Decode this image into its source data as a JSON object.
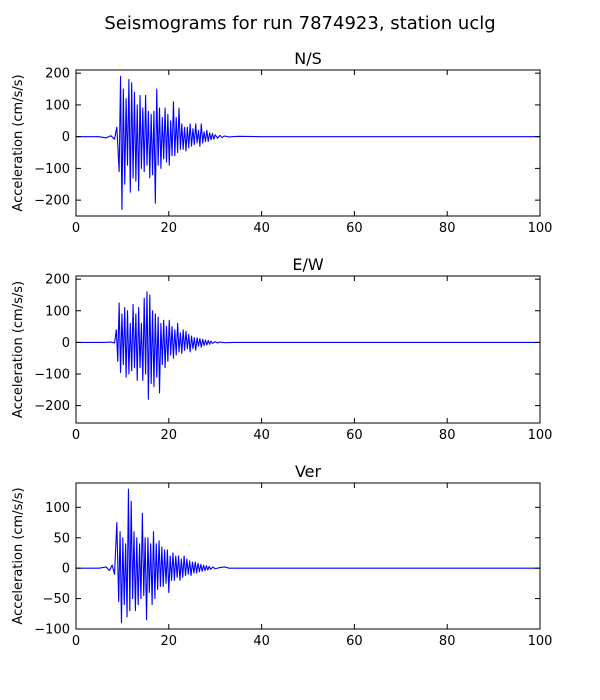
{
  "figure": {
    "title": "Seismograms for run 7874923, station uclg",
    "line_color": "#0000ff"
  },
  "chart_data": [
    {
      "type": "line",
      "title": "N/S",
      "xlabel": "",
      "ylabel": "Acceleration (cm/s/s)",
      "xlim": [
        0,
        100
      ],
      "ylim": [
        -250,
        210
      ],
      "xticks": [
        0,
        20,
        40,
        60,
        80,
        100
      ],
      "yticks": [
        -200,
        -100,
        0,
        100,
        200
      ],
      "grid": false,
      "series": [
        {
          "description": "seismogram trace (approximate envelope samples)",
          "x": [
            0,
            5,
            6.5,
            7.5,
            8.3,
            8.8,
            9.3,
            9.6,
            9.9,
            10.2,
            10.5,
            10.8,
            11.1,
            11.4,
            11.7,
            12.0,
            12.3,
            12.6,
            12.9,
            13.2,
            13.5,
            13.8,
            14.1,
            14.4,
            14.7,
            15.0,
            15.3,
            15.6,
            15.9,
            16.2,
            16.5,
            16.8,
            17.1,
            17.4,
            17.7,
            18.0,
            18.3,
            18.6,
            18.9,
            19.2,
            19.5,
            19.8,
            20.1,
            20.4,
            20.7,
            21.0,
            21.3,
            21.6,
            21.9,
            22.2,
            22.5,
            22.8,
            23.1,
            23.4,
            23.7,
            24.0,
            24.3,
            24.6,
            24.9,
            25.2,
            25.5,
            25.8,
            26.1,
            26.4,
            26.7,
            27.0,
            27.3,
            27.6,
            27.9,
            28.2,
            28.5,
            28.8,
            29.1,
            29.4,
            29.7,
            30.0,
            30.5,
            31.0,
            31.5,
            32.0,
            33.0,
            35.0,
            40.0,
            60.0,
            80.0,
            100.0
          ],
          "y": [
            0,
            0,
            -4,
            3,
            -8,
            30,
            -110,
            190,
            -230,
            150,
            -150,
            120,
            -90,
            180,
            -175,
            170,
            -130,
            140,
            -140,
            100,
            -170,
            130,
            -100,
            90,
            -110,
            130,
            -90,
            80,
            -130,
            70,
            -120,
            80,
            -210,
            150,
            -90,
            90,
            -100,
            60,
            -70,
            90,
            -80,
            70,
            -90,
            50,
            -60,
            110,
            -60,
            60,
            -50,
            90,
            -40,
            40,
            -40,
            30,
            -45,
            30,
            -35,
            40,
            -30,
            25,
            -25,
            40,
            -20,
            20,
            -30,
            40,
            -20,
            15,
            -15,
            20,
            -15,
            12,
            -10,
            10,
            -8,
            6,
            -5,
            4,
            -3,
            2,
            -1,
            1,
            0,
            0,
            0,
            0
          ]
        }
      ]
    },
    {
      "type": "line",
      "title": "E/W",
      "xlabel": "",
      "ylabel": "Acceleration (cm/s/s)",
      "xlim": [
        0,
        100
      ],
      "ylim": [
        -255,
        210
      ],
      "xticks": [
        0,
        20,
        40,
        60,
        80,
        100
      ],
      "yticks": [
        -200,
        -100,
        0,
        100,
        200
      ],
      "grid": false,
      "series": [
        {
          "description": "seismogram trace (approximate envelope samples)",
          "x": [
            0,
            6,
            7.5,
            8.3,
            8.7,
            9.0,
            9.3,
            9.6,
            9.9,
            10.2,
            10.5,
            10.8,
            11.1,
            11.4,
            11.7,
            12.0,
            12.3,
            12.6,
            12.9,
            13.2,
            13.5,
            13.8,
            14.1,
            14.4,
            14.7,
            15.0,
            15.3,
            15.6,
            15.9,
            16.2,
            16.5,
            16.8,
            17.1,
            17.4,
            17.7,
            18.0,
            18.3,
            18.6,
            18.9,
            19.2,
            19.5,
            19.8,
            20.1,
            20.4,
            20.7,
            21.0,
            21.3,
            21.6,
            21.9,
            22.2,
            22.5,
            22.8,
            23.1,
            23.4,
            23.7,
            24.0,
            24.3,
            24.6,
            24.9,
            25.2,
            25.5,
            25.8,
            26.1,
            26.4,
            26.7,
            27.0,
            27.3,
            27.6,
            27.9,
            28.2,
            28.5,
            28.8,
            29.1,
            29.4,
            30.0,
            30.5,
            31.0,
            32.0,
            34.0,
            40.0,
            60.0,
            80.0,
            100.0
          ],
          "y": [
            0,
            0,
            1,
            -2,
            40,
            -60,
            125,
            -95,
            90,
            -70,
            110,
            -110,
            100,
            -100,
            60,
            -90,
            120,
            -80,
            90,
            -120,
            110,
            -80,
            60,
            -120,
            140,
            -100,
            160,
            -180,
            150,
            -130,
            100,
            -140,
            90,
            -110,
            80,
            -160,
            60,
            -70,
            70,
            -80,
            50,
            -60,
            70,
            -40,
            50,
            -50,
            40,
            -40,
            60,
            -30,
            30,
            -35,
            40,
            -25,
            35,
            -20,
            25,
            -30,
            20,
            -20,
            15,
            -25,
            15,
            -12,
            12,
            -15,
            10,
            -10,
            8,
            -8,
            6,
            -6,
            4,
            -3,
            2,
            -2,
            1,
            -1,
            0,
            0,
            0,
            0,
            0
          ]
        }
      ]
    },
    {
      "type": "line",
      "title": "Ver",
      "xlabel": "",
      "ylabel": "Acceleration (cm/s/s)",
      "xlim": [
        0,
        100
      ],
      "ylim": [
        -100,
        140
      ],
      "xticks": [
        0,
        20,
        40,
        60,
        80,
        100
      ],
      "yticks": [
        -100,
        -50,
        0,
        50,
        100
      ],
      "grid": false,
      "series": [
        {
          "description": "seismogram trace (approximate envelope samples)",
          "x": [
            0,
            5,
            6.5,
            7.2,
            7.8,
            8.3,
            8.8,
            9.2,
            9.5,
            9.8,
            10.1,
            10.4,
            10.7,
            11.0,
            11.3,
            11.6,
            11.9,
            12.2,
            12.5,
            12.8,
            13.1,
            13.4,
            13.7,
            14.0,
            14.3,
            14.6,
            14.9,
            15.2,
            15.5,
            15.8,
            16.1,
            16.4,
            16.7,
            17.0,
            17.3,
            17.6,
            17.9,
            18.2,
            18.5,
            18.8,
            19.1,
            19.4,
            19.7,
            20.0,
            20.3,
            20.6,
            20.9,
            21.2,
            21.5,
            21.8,
            22.1,
            22.4,
            22.7,
            23.0,
            23.3,
            23.6,
            23.9,
            24.2,
            24.5,
            24.8,
            25.1,
            25.4,
            25.7,
            26.0,
            26.3,
            26.6,
            26.9,
            27.2,
            27.5,
            27.8,
            28.1,
            28.4,
            28.7,
            29.0,
            29.5,
            30.0,
            31.0,
            32.0,
            33.0,
            35.0,
            40.0,
            60.0,
            80.0,
            100.0
          ],
          "y": [
            0,
            0,
            2,
            -4,
            5,
            -10,
            75,
            -55,
            60,
            -90,
            50,
            -60,
            40,
            -80,
            130,
            -70,
            110,
            -50,
            60,
            -70,
            50,
            -60,
            40,
            -50,
            90,
            -45,
            50,
            -85,
            50,
            -40,
            40,
            -60,
            60,
            -50,
            40,
            -35,
            45,
            -30,
            35,
            -30,
            30,
            -25,
            30,
            -40,
            20,
            -20,
            25,
            -20,
            20,
            -15,
            20,
            -20,
            15,
            -15,
            20,
            -12,
            15,
            -10,
            12,
            -12,
            10,
            -8,
            10,
            -8,
            8,
            -6,
            6,
            -5,
            5,
            -4,
            4,
            -3,
            3,
            -2,
            2,
            -1,
            1,
            2,
            0,
            0,
            0,
            0,
            0,
            0
          ]
        }
      ]
    }
  ]
}
